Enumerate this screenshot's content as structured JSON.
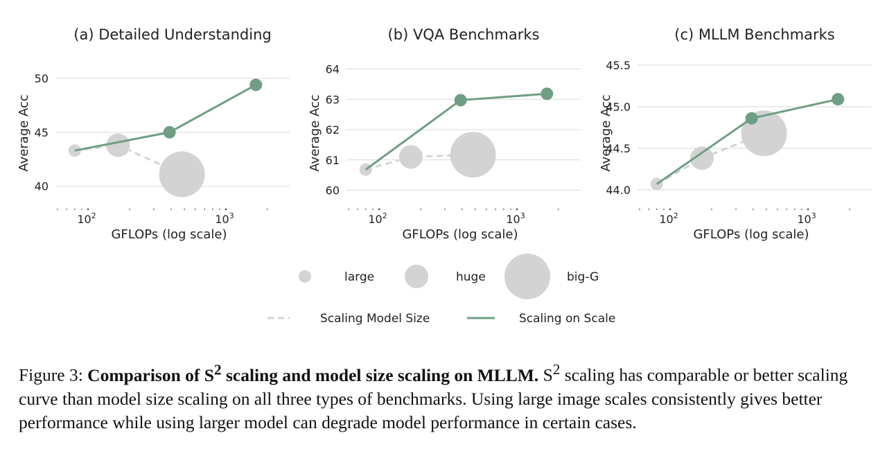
{
  "chart_data": [
    {
      "type": "scatter",
      "title": "(a) Detailed Understanding",
      "xlabel": "GFLOPs (log scale)",
      "ylabel": "Average Acc",
      "xscale": "log",
      "xlim": [
        58,
        2900
      ],
      "ylim": [
        38.5,
        52
      ],
      "yticks": [
        40,
        45,
        50
      ],
      "ytick_labels": [
        "40",
        "45",
        "50"
      ],
      "xtick_labels": [
        "10^2",
        "10^3"
      ],
      "grid": "horizontal",
      "series": [
        {
          "name": "Scaling Model Size",
          "style": "dashed",
          "color": "#d3d3d3",
          "points": [
            {
              "x": 80,
              "y": 43.3,
              "size": "large"
            },
            {
              "x": 165,
              "y": 43.8,
              "size": "huge"
            },
            {
              "x": 480,
              "y": 41.1,
              "size": "big-G"
            }
          ]
        },
        {
          "name": "Scaling on Scale",
          "style": "solid",
          "color": "#6f9e84",
          "points": [
            {
              "x": 80,
              "y": 43.3
            },
            {
              "x": 390,
              "y": 45.0
            },
            {
              "x": 1650,
              "y": 49.4
            }
          ]
        }
      ]
    },
    {
      "type": "scatter",
      "title": "(b) VQA Benchmarks",
      "xlabel": "GFLOPs (log scale)",
      "ylabel": "Average Acc",
      "xscale": "log",
      "xlim": [
        58,
        2900
      ],
      "ylim": [
        59.6,
        64.4
      ],
      "yticks": [
        60,
        61,
        62,
        63,
        64
      ],
      "ytick_labels": [
        "60",
        "61",
        "62",
        "63",
        "64"
      ],
      "xtick_labels": [
        "10^2",
        "10^3"
      ],
      "grid": "horizontal",
      "series": [
        {
          "name": "Scaling Model Size",
          "style": "dashed",
          "color": "#d3d3d3",
          "points": [
            {
              "x": 80,
              "y": 60.68,
              "size": "large"
            },
            {
              "x": 170,
              "y": 61.1,
              "size": "huge"
            },
            {
              "x": 480,
              "y": 61.17,
              "size": "big-G"
            }
          ]
        },
        {
          "name": "Scaling on Scale",
          "style": "solid",
          "color": "#6f9e84",
          "points": [
            {
              "x": 80,
              "y": 60.68
            },
            {
              "x": 390,
              "y": 62.97
            },
            {
              "x": 1650,
              "y": 63.18
            }
          ]
        }
      ]
    },
    {
      "type": "scatter",
      "title": "(c) MLLM Benchmarks",
      "xlabel": "GFLOPs (log scale)",
      "ylabel": "Average Acc",
      "xscale": "log",
      "xlim": [
        58,
        2900
      ],
      "ylim": [
        43.85,
        45.6
      ],
      "yticks": [
        44.0,
        44.5,
        45.0,
        45.5
      ],
      "ytick_labels": [
        "44.0",
        "44.5",
        "45.0",
        "45.5"
      ],
      "xtick_labels": [
        "10^2",
        "10^3"
      ],
      "grid": "horizontal",
      "series": [
        {
          "name": "Scaling Model Size",
          "style": "dashed",
          "color": "#d3d3d3",
          "points": [
            {
              "x": 80,
              "y": 44.07,
              "size": "large"
            },
            {
              "x": 170,
              "y": 44.38,
              "size": "huge"
            },
            {
              "x": 480,
              "y": 44.68,
              "size": "big-G"
            }
          ]
        },
        {
          "name": "Scaling on Scale",
          "style": "solid",
          "color": "#6f9e84",
          "points": [
            {
              "x": 80,
              "y": 44.07
            },
            {
              "x": 390,
              "y": 44.86
            },
            {
              "x": 1650,
              "y": 45.09
            }
          ]
        }
      ]
    }
  ],
  "legend": {
    "sizes": [
      {
        "key": "large",
        "label": "large"
      },
      {
        "key": "huge",
        "label": "huge"
      },
      {
        "key": "big-G",
        "label": "big-G"
      }
    ],
    "lines": [
      {
        "label": "Scaling Model Size",
        "style": "dashed",
        "color": "#d3d3d3"
      },
      {
        "label": "Scaling on Scale",
        "style": "solid",
        "color": "#6f9e84"
      }
    ]
  },
  "colors": {
    "model_size": "#d3d3d3",
    "scale": "#6f9e84",
    "grid": "#d9d9d9"
  },
  "caption": {
    "prefix": "Figure 3: ",
    "bold_title": "Comparison of S",
    "bold_sup": "2",
    "bold_title_rest": " scaling and model size scaling on MLLM.",
    "body_start": " S",
    "body_sup": "2",
    "body_rest": " scaling has comparable or better scaling curve than model size scaling on all three types of benchmarks. Using large image scales consistently gives better performance while using larger model can degrade model performance in certain cases."
  }
}
